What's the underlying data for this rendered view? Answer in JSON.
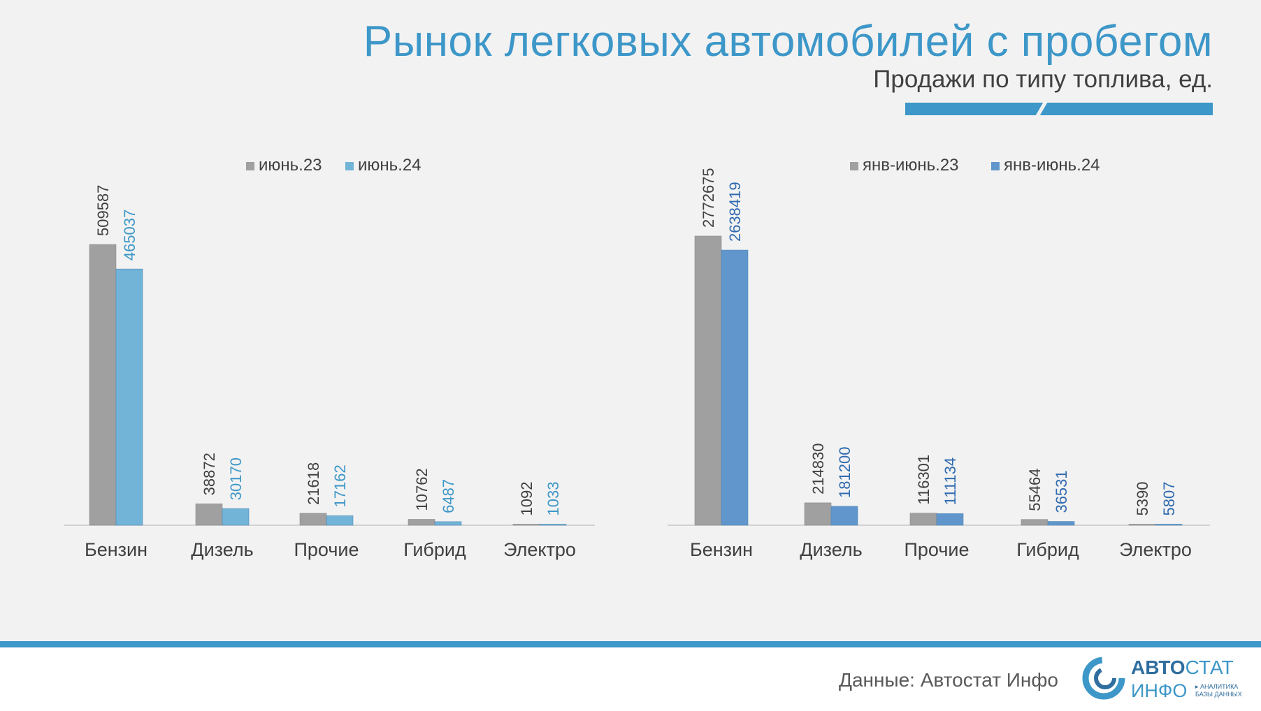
{
  "header": {
    "title": "Рынок легковых автомобилей с пробегом",
    "subtitle": "Продажи по типу топлива, ед."
  },
  "footer": {
    "source": "Данные: Автостат Инфо",
    "logo_top_bold": "АВТО",
    "logo_top_thin": "СТАТ",
    "logo_bottom": "ИНФО",
    "logo_tagline_1": "▸ АНАЛИТИКА",
    "logo_tagline_2": "БАЗЫ ДАННЫХ"
  },
  "colors": {
    "accent": "#3d97c8",
    "grey_series": "#a0a0a0",
    "light_blue_series": "#72b4d8",
    "mid_blue_series": "#6096cc"
  },
  "chart_data": [
    {
      "type": "bar",
      "categories": [
        "Бензин",
        "Дизель",
        "Прочие",
        "Гибрид",
        "Электро"
      ],
      "series": [
        {
          "name": "июнь.23",
          "values": [
            509587,
            38872,
            21618,
            10762,
            1092
          ],
          "color": "#a0a0a0",
          "label_color": "#404040"
        },
        {
          "name": "июнь.24",
          "values": [
            465037,
            30170,
            17162,
            6487,
            1033
          ],
          "color": "#72b4d8",
          "label_color": "#3d97c8"
        }
      ],
      "ylim": [
        0,
        509587
      ],
      "legend": "top-center",
      "grid": false
    },
    {
      "type": "bar",
      "categories": [
        "Бензин",
        "Дизель",
        "Прочие",
        "Гибрид",
        "Электро"
      ],
      "series": [
        {
          "name": "янв-июнь.23",
          "values": [
            2772675,
            214830,
            116301,
            55464,
            5390
          ],
          "color": "#a0a0a0",
          "label_color": "#404040"
        },
        {
          "name": "янв-июнь.24",
          "values": [
            2638419,
            181200,
            111134,
            36531,
            5807
          ],
          "color": "#6096cc",
          "label_color": "#2f6ab0"
        }
      ],
      "ylim": [
        0,
        2772675
      ],
      "legend": "top-center",
      "grid": false
    }
  ]
}
